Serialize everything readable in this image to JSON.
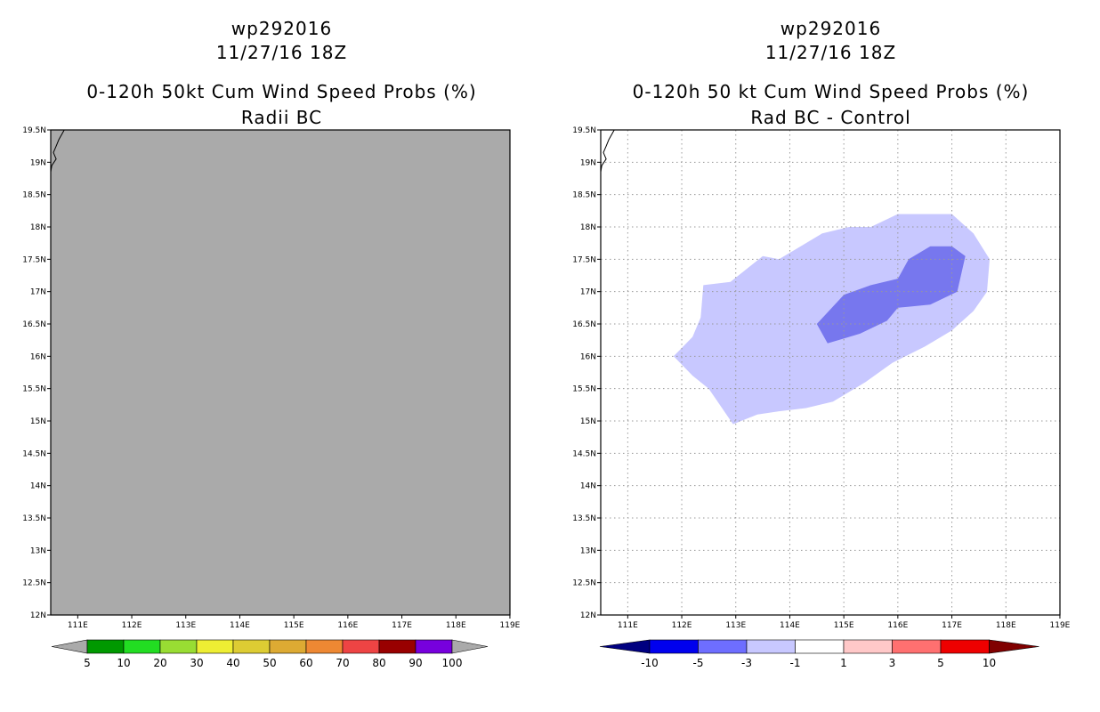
{
  "chart_data": [
    {
      "type": "map-contour",
      "title_lines": [
        "wp292016",
        "11/27/16 18Z",
        "0-120h 50kt Cum Wind Speed Probs (%)",
        "Radii BC"
      ],
      "x_ticks": [
        "111E",
        "112E",
        "113E",
        "114E",
        "115E",
        "116E",
        "117E",
        "118E",
        "119E"
      ],
      "y_ticks": [
        "19.5N",
        "19N",
        "18.5N",
        "18N",
        "17.5N",
        "17N",
        "16.5N",
        "16N",
        "15.5N",
        "15N",
        "14.5N",
        "14N",
        "13.5N",
        "13N",
        "12.5N",
        "12N"
      ],
      "x_values": [
        111,
        112,
        113,
        114,
        115,
        116,
        117,
        118,
        119
      ],
      "y_values": [
        19.5,
        19,
        18.5,
        18,
        17.5,
        17,
        16.5,
        16,
        15.5,
        15,
        14.5,
        14,
        13.5,
        13,
        12.5,
        12
      ],
      "xlim": [
        110.5,
        119
      ],
      "ylim": [
        12,
        19.5
      ],
      "field_fill": "#aaaaaa",
      "grid": false,
      "colorbar": {
        "labels": [
          "5",
          "10",
          "20",
          "30",
          "40",
          "50",
          "60",
          "70",
          "80",
          "90",
          "100"
        ],
        "colors": [
          "#009900",
          "#22dd22",
          "#99dd33",
          "#eeee33",
          "#ddcc33",
          "#ddaa33",
          "#ee8833",
          "#ee4444",
          "#990000",
          "#7700dd"
        ],
        "arrow_colors": [
          "#aaaaaa",
          "#aaaaaa"
        ]
      }
    },
    {
      "type": "map-contour",
      "title_lines": [
        "wp292016",
        "11/27/16 18Z",
        "0-120h 50 kt Cum Wind Speed Probs (%)",
        "Rad BC - Control"
      ],
      "x_ticks": [
        "111E",
        "112E",
        "113E",
        "114E",
        "115E",
        "116E",
        "117E",
        "118E",
        "119E"
      ],
      "y_ticks": [
        "19.5N",
        "19N",
        "18.5N",
        "18N",
        "17.5N",
        "17N",
        "16.5N",
        "16N",
        "15.5N",
        "15N",
        "14.5N",
        "14N",
        "13.5N",
        "13N",
        "12.5N",
        "12N"
      ],
      "x_values": [
        111,
        112,
        113,
        114,
        115,
        116,
        117,
        118,
        119
      ],
      "y_values": [
        19.5,
        19,
        18.5,
        18,
        17.5,
        17,
        16.5,
        16,
        15.5,
        15,
        14.5,
        14,
        13.5,
        13,
        12.5,
        12
      ],
      "xlim": [
        110.5,
        119
      ],
      "ylim": [
        12,
        19.5
      ],
      "grid": true,
      "contours": [
        {
          "level": "-3 to -1",
          "color": "#c8c8ff",
          "polygon": [
            [
              111.85,
              16.0
            ],
            [
              112.2,
              16.3
            ],
            [
              112.35,
              16.6
            ],
            [
              112.4,
              17.1
            ],
            [
              112.9,
              17.15
            ],
            [
              113.5,
              17.55
            ],
            [
              113.8,
              17.5
            ],
            [
              114.6,
              17.9
            ],
            [
              115.1,
              18.0
            ],
            [
              115.5,
              18.0
            ],
            [
              116.0,
              18.2
            ],
            [
              116.5,
              18.2
            ],
            [
              117.0,
              18.2
            ],
            [
              117.4,
              17.9
            ],
            [
              117.7,
              17.5
            ],
            [
              117.65,
              17.0
            ],
            [
              117.4,
              16.7
            ],
            [
              117.0,
              16.4
            ],
            [
              116.5,
              16.15
            ],
            [
              115.9,
              15.9
            ],
            [
              115.4,
              15.6
            ],
            [
              114.8,
              15.3
            ],
            [
              114.3,
              15.2
            ],
            [
              113.8,
              15.15
            ],
            [
              113.4,
              15.1
            ],
            [
              112.95,
              14.95
            ],
            [
              112.5,
              15.5
            ],
            [
              112.2,
              15.7
            ]
          ]
        },
        {
          "level": "-5 to -3",
          "color": "#7777ee",
          "polygon": [
            [
              114.5,
              16.5
            ],
            [
              115.0,
              16.95
            ],
            [
              115.5,
              17.1
            ],
            [
              116.0,
              17.2
            ],
            [
              116.2,
              17.5
            ],
            [
              116.6,
              17.7
            ],
            [
              117.0,
              17.7
            ],
            [
              117.25,
              17.55
            ],
            [
              117.1,
              17.0
            ],
            [
              116.6,
              16.8
            ],
            [
              116.0,
              16.75
            ],
            [
              115.8,
              16.55
            ],
            [
              115.3,
              16.35
            ],
            [
              114.7,
              16.2
            ]
          ]
        }
      ],
      "colorbar": {
        "labels": [
          "-10",
          "-5",
          "-3",
          "-1",
          "1",
          "3",
          "5",
          "10"
        ],
        "colors": [
          "#0000ee",
          "#6e6eff",
          "#c8c8ff",
          "#ffffff",
          "#ffc8c8",
          "#ff7070",
          "#ee0000"
        ],
        "arrow_colors": [
          "#000080",
          "#800000"
        ]
      }
    }
  ]
}
